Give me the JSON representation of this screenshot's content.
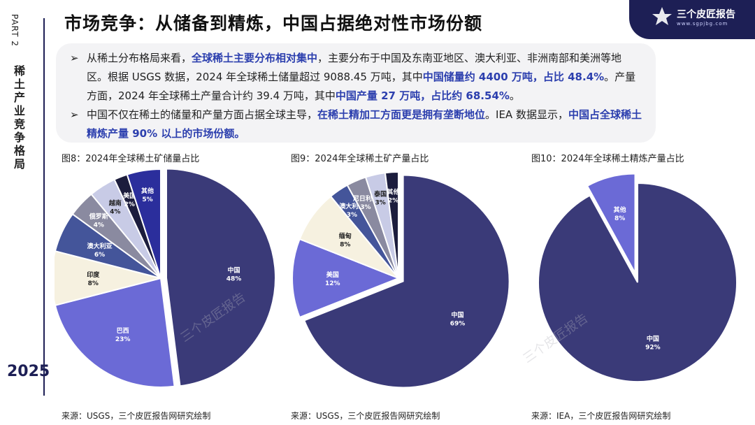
{
  "sidebar": {
    "part": "PART 2",
    "section_title": "稀土产业竞争格局",
    "year": "2025"
  },
  "header": {
    "title": "市场竞争：从储备到精炼，中国占据绝对性市场份额",
    "logo_text": "三个皮匠报告",
    "logo_sub": "www.sgpjbg.com"
  },
  "summary": {
    "bullet1": [
      {
        "t": "从稀土分布格局来看，",
        "h": false
      },
      {
        "t": "全球稀土主要分布相对集中",
        "h": true
      },
      {
        "t": "，主要分布于中国及东南亚地区、澳大利亚、非洲南部和美洲等地区。根据 USGS 数据，2024 年全球稀土储量超过 9088.45 万吨，其中",
        "h": false
      },
      {
        "t": "中国储量约 4400 万吨，占比 48.4%",
        "h": true
      },
      {
        "t": "。产量方面，2024 年全球稀土产量合计约 39.4 万吨，其中",
        "h": false
      },
      {
        "t": "中国产量 27 万吨，占比约 68.54%",
        "h": true
      },
      {
        "t": "。",
        "h": false
      }
    ],
    "bullet2": [
      {
        "t": "中国不仅在稀土的储量和产量方面占据全球主导，",
        "h": false
      },
      {
        "t": "在稀土精加工方面更是拥有垄断地位",
        "h": true
      },
      {
        "t": "。IEA 数据显示，",
        "h": false
      },
      {
        "t": "中国占全球稀土精炼产量 90% 以上的市场份额。",
        "h": true
      }
    ]
  },
  "watermark": "三个皮匠报告",
  "chart_data": [
    {
      "type": "pie",
      "title": "图8：2024年全球稀土矿储量占比",
      "source": "来源：USGS，三个皮匠报告网研究绘制",
      "categories": [
        "中国",
        "巴西",
        "印度",
        "澳大利亚",
        "俄罗斯",
        "越南",
        "美国",
        "其他"
      ],
      "values": [
        48,
        23,
        8,
        6,
        4,
        4,
        2,
        5
      ],
      "labels": [
        "48%",
        "23%",
        "8%",
        "6%",
        "4%",
        "4%",
        "2%",
        "5%"
      ],
      "colors": [
        "#3a3a78",
        "#6b6ad6",
        "#f6f1e0",
        "#44559a",
        "#8a8aa0",
        "#c8cbe6",
        "#1c1d3d",
        "#2b2e9c"
      ],
      "exploded": [
        "中国"
      ]
    },
    {
      "type": "pie",
      "title": "图9：2024年全球稀土矿产量占比",
      "source": "来源：USGS，三个皮匠报告网研究绘制",
      "categories": [
        "中国",
        "美国",
        "缅甸",
        "澳大利亚",
        "尼日利亚",
        "泰国",
        "其他"
      ],
      "values": [
        69,
        12,
        8,
        3,
        3,
        3,
        2
      ],
      "labels": [
        "69%",
        "12%",
        "8%",
        "3%",
        "3%",
        "3%",
        "2%"
      ],
      "colors": [
        "#3a3a78",
        "#6b6ad6",
        "#f6f1e0",
        "#44559a",
        "#8a8aa0",
        "#c8cbe6",
        "#1c1d3d"
      ],
      "exploded": [
        "中国"
      ]
    },
    {
      "type": "pie",
      "title": "图10：2024年全球稀土精炼产量占比",
      "source": "来源：IEA，三个皮匠报告网研究绘制",
      "categories": [
        "中国",
        "其他"
      ],
      "values": [
        92,
        8
      ],
      "labels": [
        "92%",
        "8%"
      ],
      "colors": [
        "#3a3a78",
        "#6b6ad6"
      ],
      "exploded": [
        "其他"
      ]
    }
  ]
}
